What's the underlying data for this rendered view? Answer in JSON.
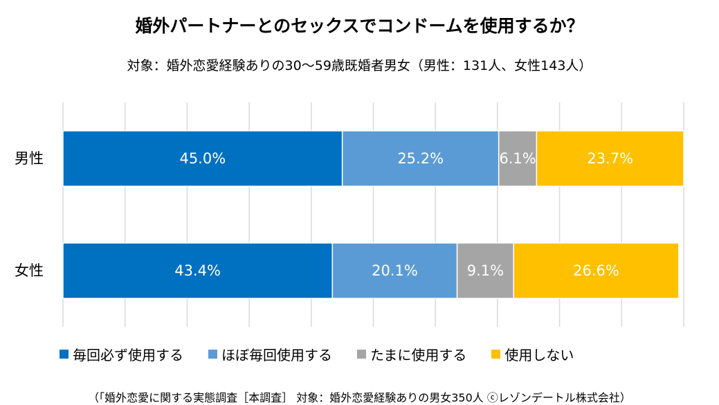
{
  "title": "婚外パートナーとのセックスでコンドームを使用するか？",
  "subtitle": "対象：婚外恋愛経験ありの30～59歳既婚者男女（男性：131人、女性143人）",
  "footnote": "（「婚外恋愛に関する実態調査［本調査］ 対象：婚外恋愛経験ありの男女350人 ⓒレゾンデートル株式会社）",
  "chart_data": {
    "type": "bar",
    "orientation": "horizontal",
    "stacked": "100%",
    "categories": [
      "男性",
      "女性"
    ],
    "series": [
      {
        "name": "毎回必ず使用する",
        "values": [
          45.0,
          43.4
        ],
        "labels": [
          "45.0%",
          "43.4%"
        ],
        "color": "#0070C0",
        "label_color": "#ffffff"
      },
      {
        "name": "ほぼ毎回使用する",
        "values": [
          25.2,
          20.1
        ],
        "labels": [
          "25.2%",
          "20.1%"
        ],
        "color": "#5B9BD5",
        "label_color": "#ffffff"
      },
      {
        "name": "たまに使用する",
        "values": [
          6.1,
          9.1
        ],
        "labels": [
          "6.1%",
          "9.1%"
        ],
        "color": "#A5A5A5",
        "label_color": "#ffffff"
      },
      {
        "name": "使用しない",
        "values": [
          23.7,
          26.6
        ],
        "labels": [
          "23.7%",
          "26.6%"
        ],
        "color": "#FFC000",
        "label_color": "#ffffff"
      }
    ],
    "xlim": [
      0,
      100
    ],
    "grid": true,
    "legend_position": "bottom"
  }
}
